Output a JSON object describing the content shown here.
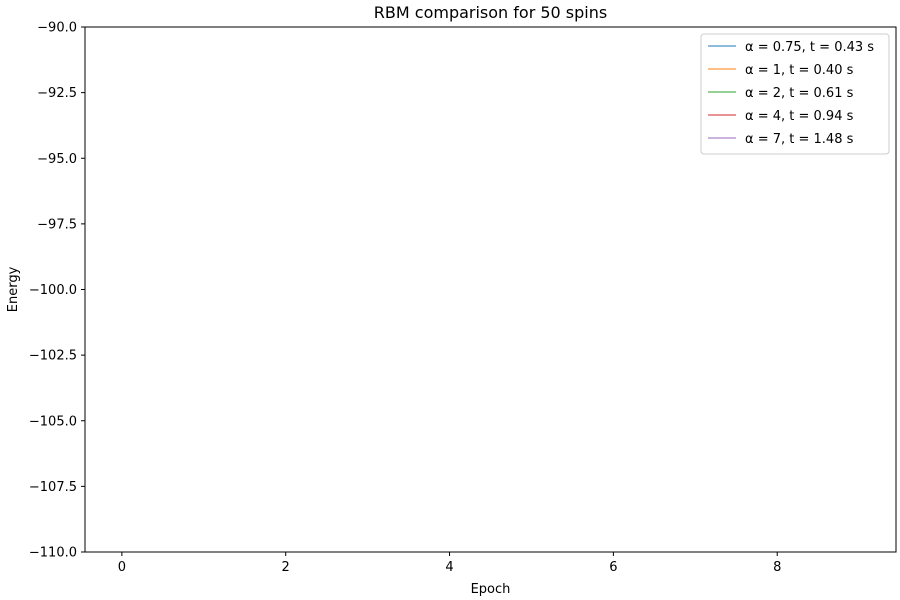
{
  "chart_data": {
    "type": "line",
    "title": "RBM comparison for 50 spins",
    "xlabel": "Epoch",
    "ylabel": "Energy",
    "xlim": [
      -0.45,
      9.45
    ],
    "ylim": [
      -110.0,
      -90.0
    ],
    "xticks": [
      0,
      2,
      4,
      6,
      8
    ],
    "xtick_labels": [
      "0",
      "2",
      "4",
      "6",
      "8"
    ],
    "yticks": [
      -110.0,
      -107.5,
      -105.0,
      -102.5,
      -100.0,
      -97.5,
      -95.0,
      -92.5,
      -90.0
    ],
    "ytick_labels": [
      "−110.0",
      "−107.5",
      "−105.0",
      "−102.5",
      "−100.0",
      "−97.5",
      "−95.0",
      "−92.5",
      "−90.0"
    ],
    "grid": false,
    "legend_position": "top-right",
    "series": [
      {
        "name": "α = 0.75, t = 0.43 s",
        "color": "#1f77b4",
        "x": [],
        "y": []
      },
      {
        "name": "α = 1, t = 0.40 s",
        "color": "#ff7f0e",
        "x": [],
        "y": []
      },
      {
        "name": "α = 2, t = 0.61 s",
        "color": "#2ca02c",
        "x": [],
        "y": []
      },
      {
        "name": "α = 4, t = 0.94 s",
        "color": "#d62728",
        "x": [],
        "y": []
      },
      {
        "name": "α = 7, t = 1.48 s",
        "color": "#9467bd",
        "x": [],
        "y": []
      }
    ]
  }
}
